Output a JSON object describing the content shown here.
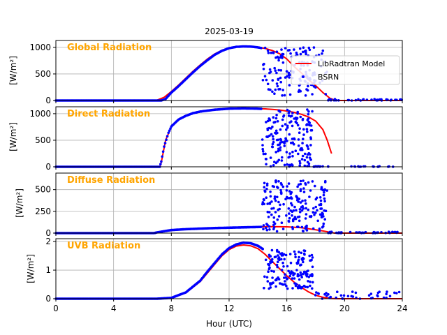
{
  "chart_data": {
    "type": "line",
    "title": "2025-03-19",
    "xlabel": "Hour (UTC)",
    "xlim": [
      0,
      24
    ],
    "xticks": [
      0,
      4,
      8,
      12,
      16,
      20,
      24
    ],
    "grid": true,
    "colors": {
      "model": "#ff0000",
      "bsrn": "#0000ff",
      "panel_title": "#ffa500"
    },
    "legend": {
      "placement": "first-panel-right",
      "entries": [
        "LibRadtran Model",
        "BSRN"
      ]
    },
    "panels": [
      {
        "name": "Global Radiation",
        "ylabel": "[W/m²]",
        "ylim": [
          0,
          1130
        ],
        "yticks": [
          0,
          500,
          1000
        ],
        "model": {
          "x": [
            0,
            6.7,
            7,
            7.5,
            8,
            8.5,
            9,
            9.5,
            10,
            10.5,
            11,
            11.5,
            12,
            12.5,
            13,
            13.5,
            14,
            14.5,
            15,
            15.5,
            16,
            16.5,
            17,
            17.5,
            18,
            18.5,
            19,
            19.4,
            20,
            24
          ],
          "y": [
            0,
            0,
            5,
            60,
            170,
            290,
            420,
            550,
            670,
            780,
            875,
            945,
            990,
            1015,
            1020,
            1015,
            1000,
            980,
            940,
            880,
            780,
            640,
            520,
            390,
            280,
            150,
            40,
            0,
            0,
            0
          ]
        },
        "bsrn_clear": {
          "x": [
            0,
            7.3,
            7.6,
            8,
            8.5,
            9,
            9.5,
            10,
            10.5,
            11,
            11.5,
            12,
            12.5,
            13,
            13.5,
            14,
            14.3
          ],
          "y": [
            0,
            0,
            30,
            150,
            270,
            400,
            530,
            650,
            760,
            860,
            935,
            985,
            1010,
            1018,
            1015,
            1000,
            985
          ]
        },
        "bsrn_cloudy": {
          "x_range": [
            14.3,
            18.8
          ],
          "y_range": [
            90,
            1000
          ],
          "count": 150
        },
        "bsrn_tail": {
          "x_range": [
            18.8,
            24
          ],
          "y_range": [
            0,
            25
          ],
          "count": 40
        }
      },
      {
        "name": "Direct Radiation",
        "ylabel": "[W/m²]",
        "ylim": [
          0,
          1130
        ],
        "yticks": [
          0,
          500,
          1000
        ],
        "model": {
          "x": [
            0,
            7.2,
            7.3,
            7.6,
            8,
            8.5,
            9,
            9.5,
            10,
            11,
            12,
            13,
            14,
            14.5,
            15,
            15.5,
            16,
            16.5,
            17,
            17.5,
            18,
            18.5,
            18.8,
            19.1
          ],
          "y": [
            0,
            0,
            80,
            500,
            750,
            890,
            960,
            1010,
            1040,
            1075,
            1095,
            1100,
            1095,
            1090,
            1080,
            1070,
            1050,
            1025,
            990,
            940,
            860,
            700,
            500,
            250
          ]
        },
        "bsrn_clear": {
          "x": [
            0,
            7.2,
            7.3,
            7.5,
            7.8,
            8,
            8.5,
            9,
            9.5,
            10,
            11,
            12,
            13,
            14,
            14.3
          ],
          "y": [
            0,
            0,
            100,
            380,
            640,
            760,
            890,
            960,
            1010,
            1040,
            1075,
            1095,
            1100,
            1095,
            1090
          ]
        },
        "bsrn_cloudy": {
          "x_range": [
            14.3,
            17.8
          ],
          "y_range": [
            0,
            1080
          ],
          "count": 180
        },
        "bsrn_tail": {
          "x_range": [
            17.8,
            24
          ],
          "y_range": [
            0,
            10
          ],
          "count": 30
        }
      },
      {
        "name": "Diffuse Radiation",
        "ylabel": "[W/m²]",
        "ylim": [
          0,
          690
        ],
        "yticks": [
          0,
          250,
          500
        ],
        "model": {
          "x": [
            0,
            6.8,
            7,
            7.5,
            8,
            9,
            10,
            11,
            12,
            13,
            14,
            15,
            16,
            17,
            17.5,
            18,
            18.5,
            19,
            19.3,
            24
          ],
          "y": [
            0,
            0,
            5,
            18,
            30,
            42,
            50,
            57,
            62,
            67,
            72,
            75,
            72,
            62,
            50,
            38,
            25,
            10,
            0,
            0
          ]
        },
        "bsrn_clear": {
          "x": [
            0,
            6.8,
            7,
            7.5,
            8,
            9,
            10,
            11,
            12,
            13,
            14,
            14.3
          ],
          "y": [
            0,
            0,
            8,
            22,
            35,
            45,
            52,
            58,
            62,
            66,
            70,
            72
          ]
        },
        "bsrn_cloudy": {
          "x_range": [
            14.3,
            18.8
          ],
          "y_range": [
            20,
            620
          ],
          "count": 200
        },
        "bsrn_tail": {
          "x_range": [
            18.8,
            24
          ],
          "y_range": [
            0,
            15
          ],
          "count": 40
        }
      },
      {
        "name": "UVB Radiation",
        "ylabel": "[W/m²]",
        "ylim": [
          0,
          2.1
        ],
        "yticks": [
          0,
          1,
          2
        ],
        "model": {
          "x": [
            0,
            7,
            8,
            9,
            10,
            10.5,
            11,
            11.5,
            12,
            12.5,
            13,
            13.5,
            14,
            14.5,
            15,
            15.5,
            16,
            16.5,
            17,
            17.5,
            18,
            18.5,
            19,
            19.5,
            20,
            24
          ],
          "y": [
            0,
            0,
            0.02,
            0.2,
            0.6,
            0.9,
            1.2,
            1.5,
            1.72,
            1.84,
            1.88,
            1.85,
            1.75,
            1.55,
            1.3,
            1.05,
            0.8,
            0.58,
            0.4,
            0.24,
            0.12,
            0.05,
            0.01,
            0,
            0,
            0
          ]
        },
        "bsrn_clear": {
          "x": [
            0,
            7,
            8,
            9,
            10,
            10.5,
            11,
            11.5,
            12,
            12.5,
            13,
            13.5,
            14,
            14.4
          ],
          "y": [
            0,
            0,
            0.03,
            0.22,
            0.63,
            0.95,
            1.25,
            1.55,
            1.77,
            1.9,
            1.96,
            1.94,
            1.85,
            1.72
          ]
        },
        "bsrn_cloudy": {
          "x_range": [
            14.4,
            17.8
          ],
          "y_range": [
            0.35,
            1.7
          ],
          "count": 160
        },
        "bsrn_tail": {
          "x_range": [
            17.8,
            24
          ],
          "y_range": [
            0,
            0.25
          ],
          "count": 40
        }
      }
    ]
  }
}
